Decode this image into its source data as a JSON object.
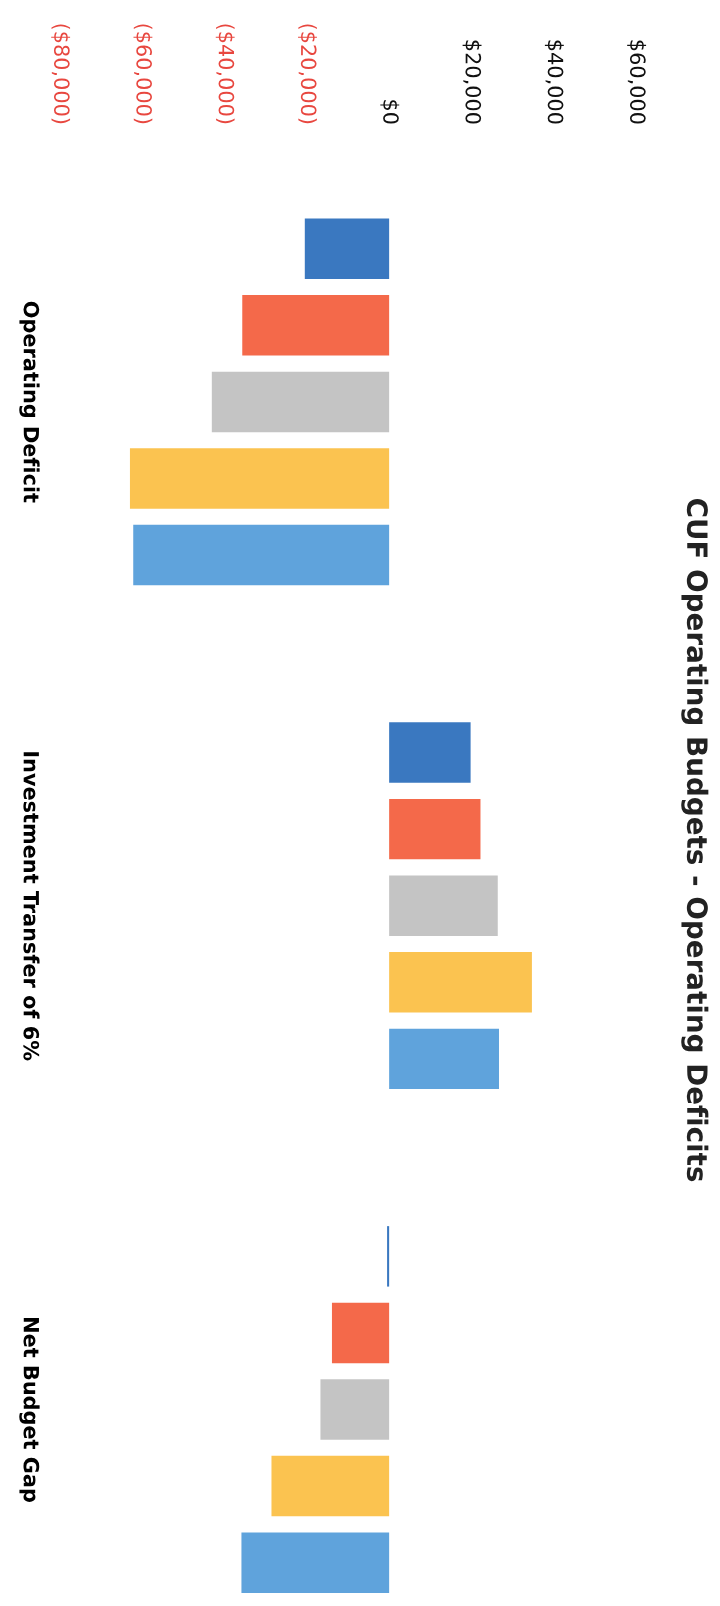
{
  "chart_data": {
    "type": "bar",
    "title": "CUF Operating Budgets - Operating Deficits",
    "orientation": "horizontal",
    "categories": [
      "Operating Deficit",
      "Investment Transfer of 6%",
      "Net Budget Gap"
    ],
    "series": [
      {
        "color": "#3a78c0",
        "values": [
          -20500,
          19800,
          -500
        ]
      },
      {
        "color": "#f4694a",
        "values": [
          -35700,
          22200,
          -13900
        ]
      },
      {
        "color": "#c4c4c4",
        "values": [
          -43100,
          26400,
          -16700
        ]
      },
      {
        "color": "#fbc350",
        "values": [
          -63000,
          34700,
          -28600
        ]
      },
      {
        "color": "#5fa3dc",
        "values": [
          -62200,
          26700,
          -35900
        ]
      }
    ],
    "xlim": [
      -80000,
      60000
    ],
    "xticks": [
      {
        "value": -80000,
        "label": "($80,000)"
      },
      {
        "value": -60000,
        "label": "($60,000)"
      },
      {
        "value": -40000,
        "label": "($40,000)"
      },
      {
        "value": -20000,
        "label": "($20,000)"
      },
      {
        "value": 0,
        "label": "$0"
      },
      {
        "value": 20000,
        "label": "$20,000"
      },
      {
        "value": 40000,
        "label": "$40,000"
      },
      {
        "value": 60000,
        "label": "$60,000"
      }
    ],
    "grid": false
  }
}
